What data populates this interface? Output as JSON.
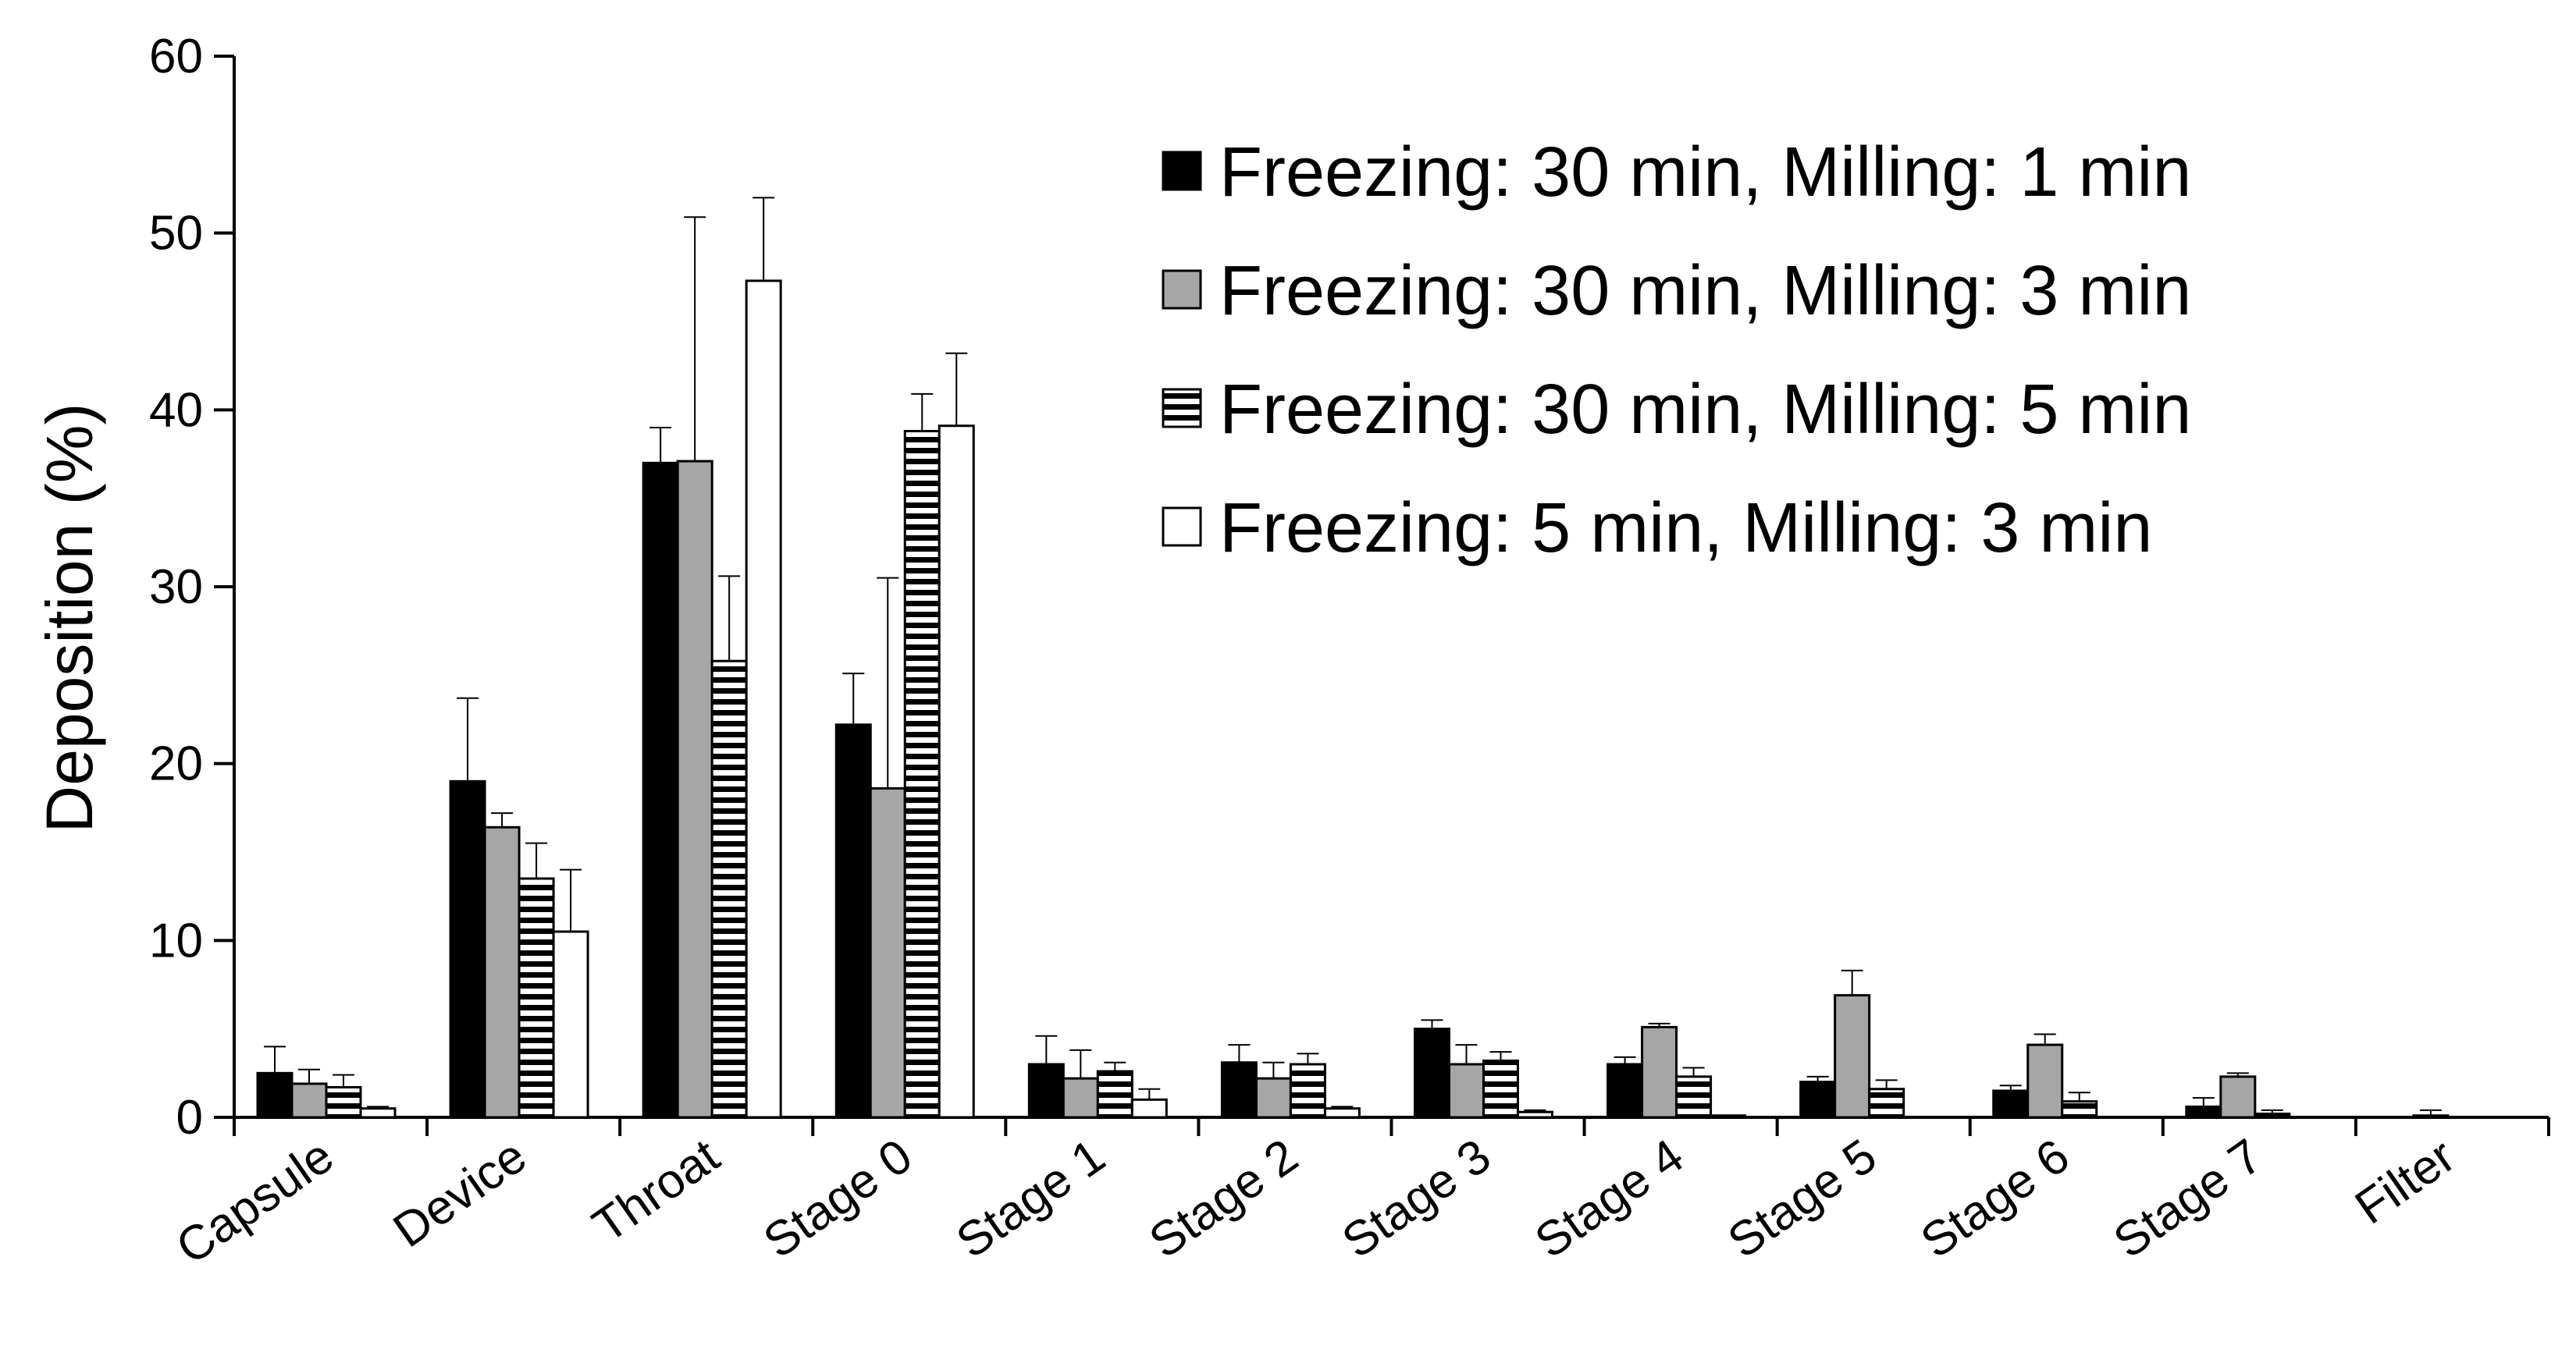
{
  "chart_data": {
    "type": "bar",
    "title": "",
    "xlabel": "",
    "ylabel": "Deposition (%)",
    "ylim": [
      0,
      60
    ],
    "yticks": [
      0,
      10,
      20,
      30,
      40,
      50,
      60
    ],
    "grid": false,
    "legend_position": "top-right",
    "categories": [
      "Capsule",
      "Device",
      "Throat",
      "Stage 0",
      "Stage 1",
      "Stage 2",
      "Stage 3",
      "Stage 4",
      "Stage 5",
      "Stage 6",
      "Stage 7",
      "Filter"
    ],
    "series": [
      {
        "name": "Freezing: 30 min, Milling: 1 min",
        "fill": "solid-black",
        "color": "#000000",
        "values": [
          2.5,
          19.0,
          37.0,
          22.2,
          3.0,
          3.1,
          5.0,
          3.0,
          2.0,
          1.5,
          0.6,
          0.0
        ],
        "errors": [
          1.5,
          4.7,
          2.0,
          2.9,
          1.6,
          1.0,
          0.5,
          0.4,
          0.3,
          0.3,
          0.5,
          0.0
        ]
      },
      {
        "name": "Freezing: 30 min, Milling: 3 min",
        "fill": "solid-gray",
        "color": "#a6a6a6",
        "values": [
          1.9,
          16.4,
          37.1,
          18.6,
          2.2,
          2.2,
          3.0,
          5.1,
          6.9,
          4.1,
          2.3,
          0.1
        ],
        "errors": [
          0.8,
          0.8,
          13.8,
          11.9,
          1.6,
          0.9,
          1.1,
          0.2,
          1.4,
          0.6,
          0.2,
          0.3
        ]
      },
      {
        "name": "Freezing: 30 min, Milling: 5 min",
        "fill": "horizontal-stripes",
        "color": "#000000",
        "values": [
          1.7,
          13.5,
          25.8,
          38.8,
          2.6,
          3.0,
          3.2,
          2.3,
          1.6,
          0.9,
          0.2,
          0.0
        ],
        "errors": [
          0.7,
          2.0,
          4.8,
          2.1,
          0.5,
          0.6,
          0.5,
          0.5,
          0.5,
          0.5,
          0.2,
          0.0
        ]
      },
      {
        "name": "Freezing: 5 min, Milling: 3 min",
        "fill": "white",
        "color": "#ffffff",
        "values": [
          0.5,
          10.5,
          47.3,
          39.1,
          1.0,
          0.5,
          0.3,
          0.1,
          0.0,
          0.0,
          0.0,
          0.0
        ],
        "errors": [
          0.1,
          3.5,
          4.7,
          4.1,
          0.6,
          0.1,
          0.1,
          0.0,
          0.0,
          0.0,
          0.0,
          0.0
        ]
      }
    ]
  }
}
